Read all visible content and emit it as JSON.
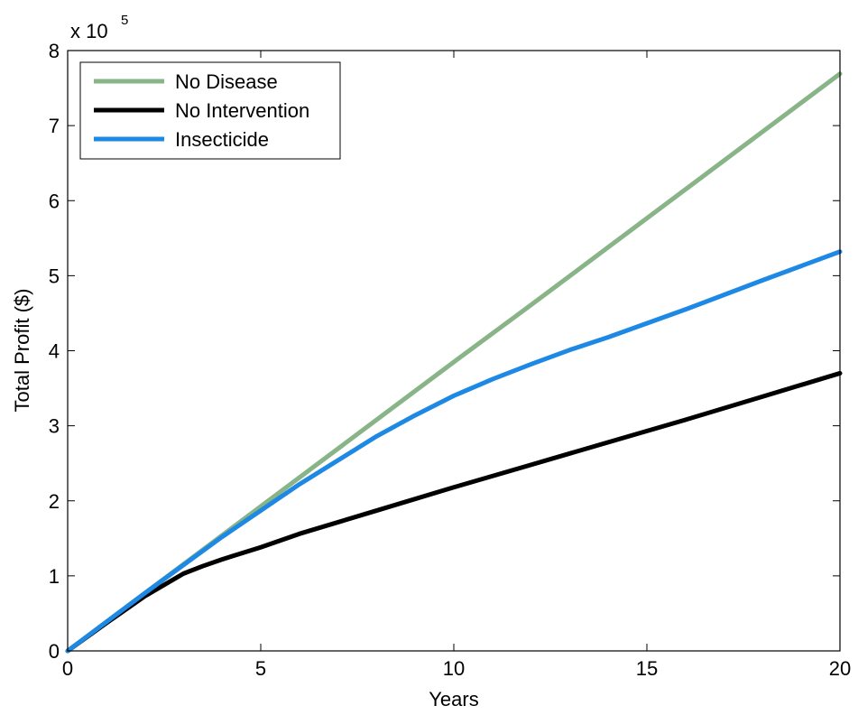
{
  "chart_data": {
    "type": "line",
    "title": "",
    "xlabel": "Years",
    "ylabel": "Total Profit ($)",
    "xlim": [
      0,
      20
    ],
    "ylim": [
      0,
      8
    ],
    "y_scale_multiplier": "x 10",
    "y_scale_exponent": "5",
    "x_ticks": [
      0,
      5,
      10,
      15,
      20
    ],
    "y_ticks": [
      0,
      1,
      2,
      3,
      4,
      5,
      6,
      7,
      8
    ],
    "x_tick_labels": [
      "0",
      "5",
      "10",
      "15",
      "20"
    ],
    "y_tick_labels": [
      "0",
      "1",
      "2",
      "3",
      "4",
      "5",
      "6",
      "7",
      "8"
    ],
    "grid": false,
    "legend_position": "top-left",
    "series": [
      {
        "name": "No Disease",
        "color": "#88b488",
        "x": [
          0,
          2,
          4,
          6,
          8,
          10,
          12,
          14,
          16,
          18,
          20
        ],
        "values": [
          0,
          0.77,
          1.54,
          2.31,
          3.08,
          3.85,
          4.61,
          5.38,
          6.15,
          6.92,
          7.69
        ]
      },
      {
        "name": "No Intervention",
        "color": "#000000",
        "x": [
          0,
          1,
          2,
          3,
          3.5,
          4,
          5,
          6,
          8,
          10,
          12,
          14,
          16,
          18,
          20
        ],
        "values": [
          0,
          0.37,
          0.73,
          1.03,
          1.13,
          1.22,
          1.38,
          1.56,
          1.87,
          2.18,
          2.48,
          2.78,
          3.08,
          3.39,
          3.7
        ]
      },
      {
        "name": "Insecticide",
        "color": "#1e88e5",
        "x": [
          0,
          2,
          4,
          6,
          8,
          9,
          10,
          11,
          12,
          13,
          14,
          16,
          18,
          20
        ],
        "values": [
          0,
          0.77,
          1.52,
          2.22,
          2.86,
          3.14,
          3.4,
          3.62,
          3.82,
          4.01,
          4.18,
          4.55,
          4.94,
          5.32
        ]
      }
    ]
  }
}
